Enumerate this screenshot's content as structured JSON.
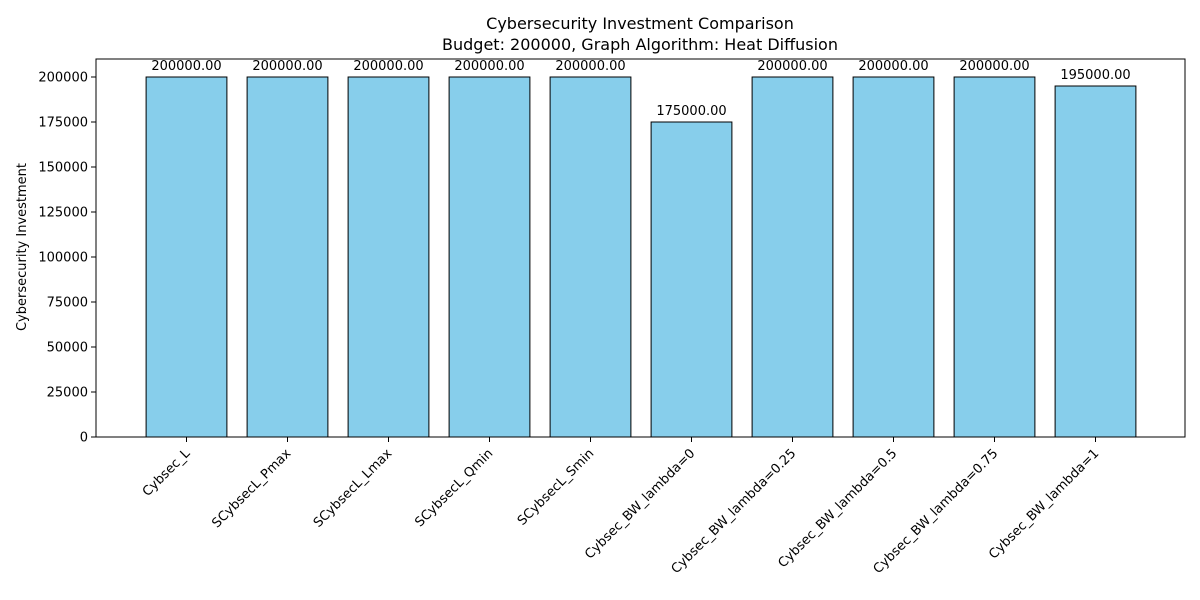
{
  "chart_data": {
    "type": "bar",
    "title": "Cybersecurity Investment Comparison",
    "subtitle": "Budget: 200000, Graph Algorithm: Heat Diffusion",
    "xlabel": "",
    "ylabel": "Cybersecurity Investment",
    "categories": [
      "Cybsec_L",
      "SCybsecL_Pmax",
      "SCybsecL_Lmax",
      "SCybsecL_Qmin",
      "SCybsecL_Smin",
      "Cybsec_BW_lambda=0",
      "Cybsec_BW_lambda=0.25",
      "Cybsec_BW_lambda=0.5",
      "Cybsec_BW_lambda=0.75",
      "Cybsec_BW_lambda=1"
    ],
    "values": [
      200000,
      200000,
      200000,
      200000,
      200000,
      175000,
      200000,
      200000,
      200000,
      195000
    ],
    "data_labels": [
      "200000.00",
      "200000.00",
      "200000.00",
      "200000.00",
      "200000.00",
      "175000.00",
      "200000.00",
      "200000.00",
      "200000.00",
      "195000.00"
    ],
    "yticks": [
      0,
      25000,
      50000,
      75000,
      100000,
      125000,
      150000,
      175000,
      200000
    ],
    "ylim": [
      0,
      210000
    ],
    "grid": false,
    "legend": "none",
    "bar_color": "#87CEEB",
    "edge_color": "#000000"
  }
}
